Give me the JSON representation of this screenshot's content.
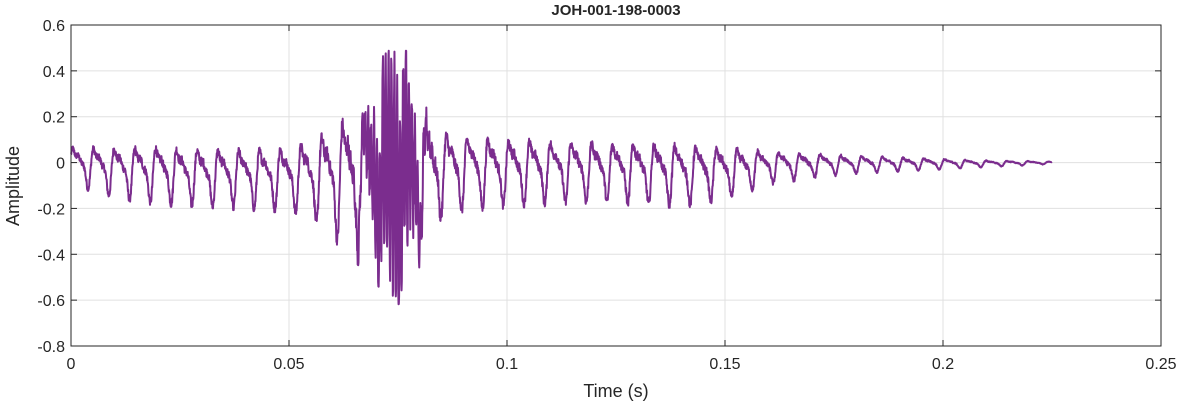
{
  "chart_data": {
    "type": "line",
    "title": "JOH-001-198-0003",
    "xlabel": "Time (s)",
    "ylabel": "Amplitude",
    "xlim": [
      0,
      0.25
    ],
    "ylim": [
      -0.8,
      0.6
    ],
    "xticks": [
      0,
      0.05,
      0.1,
      0.15,
      0.2,
      0.25
    ],
    "xtick_labels": [
      "0",
      "0.05",
      "0.1",
      "0.15",
      "0.2",
      "0.25"
    ],
    "yticks": [
      -0.8,
      -0.6,
      -0.4,
      -0.2,
      0,
      0.2,
      0.4,
      0.6
    ],
    "ytick_labels": [
      "-0.8",
      "-0.6",
      "-0.4",
      "-0.2",
      "0",
      "0.2",
      "0.4",
      "0.6"
    ],
    "grid": true,
    "legend": "none",
    "colors": {
      "line": "#7B2D8E",
      "grid": "#e0e0e0",
      "axes": "#262626"
    },
    "series": [
      {
        "envelope": {
          "t": [
            0,
            0.01,
            0.02,
            0.03,
            0.04,
            0.05,
            0.055,
            0.06,
            0.065,
            0.07,
            0.073,
            0.075,
            0.078,
            0.082,
            0.085,
            0.09,
            0.1,
            0.11,
            0.12,
            0.13,
            0.14,
            0.15,
            0.16,
            0.17,
            0.18,
            0.19,
            0.2,
            0.21,
            0.22,
            0.225
          ],
          "max": [
            0.1,
            0.11,
            0.12,
            0.11,
            0.11,
            0.12,
            0.16,
            0.24,
            0.34,
            0.44,
            0.49,
            0.5,
            0.48,
            0.28,
            0.21,
            0.18,
            0.16,
            0.15,
            0.14,
            0.14,
            0.13,
            0.11,
            0.08,
            0.06,
            0.045,
            0.035,
            0.025,
            0.015,
            0.01,
            0.006
          ],
          "min": [
            -0.1,
            -0.16,
            -0.19,
            -0.2,
            -0.21,
            -0.22,
            -0.26,
            -0.34,
            -0.43,
            -0.53,
            -0.59,
            -0.62,
            -0.57,
            -0.33,
            -0.26,
            -0.22,
            -0.2,
            -0.19,
            -0.18,
            -0.19,
            -0.2,
            -0.17,
            -0.1,
            -0.07,
            -0.05,
            -0.04,
            -0.03,
            -0.02,
            -0.012,
            -0.006
          ]
        },
        "duration": 0.225
      }
    ]
  }
}
